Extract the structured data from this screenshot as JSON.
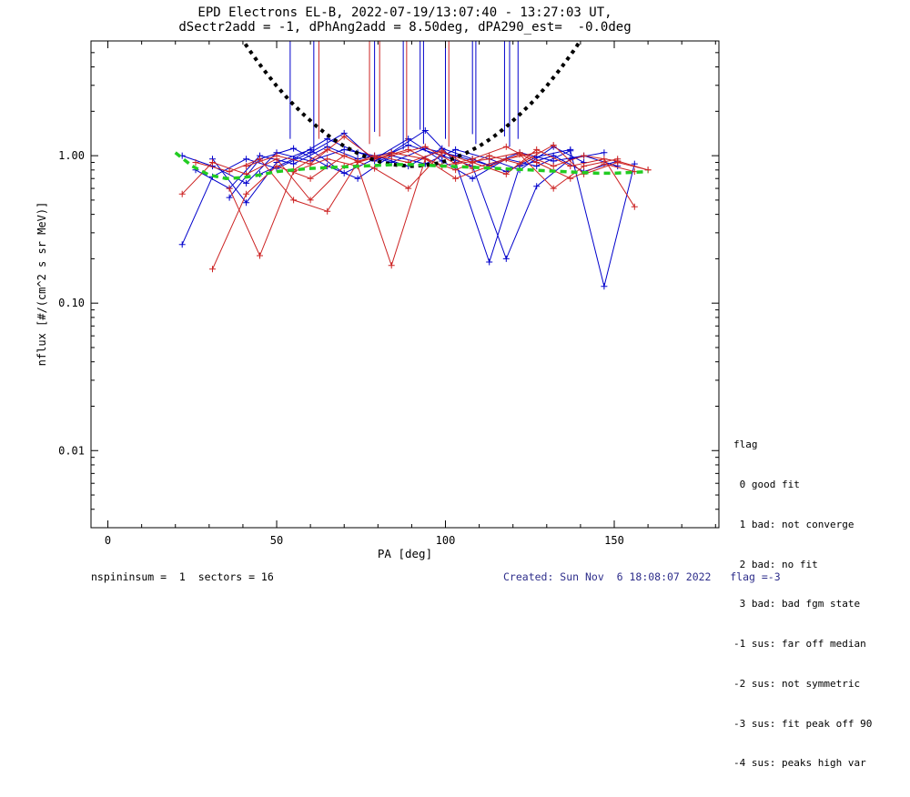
{
  "header": {
    "line1": "EPD Electrons EL-B, 2022-07-19/13:07:40 - 13:27:03 UT,",
    "line2": "dSectr2add = -1, dPhAng2add = 8.50deg, dPA290_est=  -0.0deg"
  },
  "legend": {
    "title": "flag",
    "lines": [
      " 0 good fit",
      " 1 bad: not converge",
      " 2 bad: no fit",
      " 3 bad: bad fgm state",
      "-1 sus: far off median",
      "-2 sus: not symmetric",
      "-3 sus: fit peak off 90",
      "-4 sus: peaks high var"
    ]
  },
  "footer": {
    "left": "nspininsum =  1  sectors = 16",
    "right": "Created: Sun Nov  6 18:08:07 2022   flag =-3"
  },
  "colors": {
    "red": "#cc2222",
    "blue": "#0000cc",
    "green": "#22cc22",
    "black": "#000000",
    "created_text": "#2e2e8b"
  },
  "chart_data": {
    "type": "line",
    "title": "EPD Electrons EL-B, 2022-07-19/13:07:40 - 13:27:03 UT,",
    "subtitle": "dSectr2add = -1, dPhAng2add = 8.50deg, dPA290_est=  -0.0deg",
    "xlabel": "PA [deg]",
    "ylabel": "nflux [#/(cm^2 s sr MeV)]",
    "xlim": [
      -5,
      181
    ],
    "xticks": [
      0,
      50,
      100,
      150
    ],
    "xminor_step": 10,
    "ylog": true,
    "ylim": [
      0.003,
      6.0
    ],
    "yticks": [
      0.01,
      0.1,
      1.0
    ],
    "ytick_labels": [
      "0.01",
      "0.10",
      "1.00"
    ],
    "grid": false,
    "legend_position": "right-bottom-outside",
    "series": [
      {
        "name": "blue-1",
        "color": "#0000cc",
        "x": [
          22,
          31,
          41,
          50,
          60,
          70,
          79,
          89,
          99,
          108,
          118,
          127,
          137,
          147
        ],
        "y": [
          0.25,
          0.72,
          0.95,
          0.82,
          1.05,
          1.42,
          0.92,
          1.18,
          1.0,
          0.85,
          0.2,
          0.62,
          0.95,
          1.05
        ]
      },
      {
        "name": "blue-2",
        "color": "#0000cc",
        "x": [
          31,
          41,
          50,
          60,
          70,
          79,
          89,
          99,
          108,
          118,
          127,
          137,
          147,
          156
        ],
        "y": [
          0.95,
          0.48,
          0.9,
          1.1,
          0.76,
          0.95,
          1.3,
          0.92,
          0.7,
          0.95,
          0.85,
          1.08,
          0.13,
          0.88
        ]
      },
      {
        "name": "blue-3",
        "color": "#0000cc",
        "x": [
          26,
          36,
          45,
          55,
          65,
          74,
          84,
          94,
          103,
          113,
          122,
          132,
          141,
          151
        ],
        "y": [
          0.8,
          0.6,
          1.0,
          0.88,
          1.15,
          0.95,
          1.05,
          1.48,
          0.9,
          0.19,
          0.85,
          1.0,
          0.78,
          0.92
        ]
      },
      {
        "name": "blue-4",
        "color": "#0000cc",
        "x": [
          36,
          45,
          55,
          65,
          74,
          84,
          94,
          103,
          113,
          122,
          132,
          141
        ],
        "y": [
          0.52,
          0.95,
          1.12,
          0.85,
          0.7,
          1.0,
          0.88,
          1.1,
          0.95,
          0.8,
          1.15,
          0.9
        ]
      },
      {
        "name": "blue-5",
        "color": "#0000cc",
        "x": [
          22,
          31,
          41,
          50,
          60,
          70,
          79,
          89,
          99,
          108,
          118,
          127,
          137
        ],
        "y": [
          1.0,
          0.85,
          0.65,
          1.05,
          0.92,
          1.1,
          1.0,
          0.85,
          1.12,
          0.95,
          0.78,
          0.98,
          1.1
        ]
      },
      {
        "name": "blue-6",
        "color": "#0000cc",
        "x": [
          45,
          55,
          65,
          74,
          84,
          94,
          103,
          113,
          122,
          132,
          141,
          151
        ],
        "y": [
          0.75,
          0.95,
          1.3,
          1.05,
          0.9,
          1.12,
          1.0,
          0.86,
          1.05,
          0.92,
          1.0,
          0.85
        ]
      },
      {
        "name": "red-1",
        "color": "#cc2222",
        "x": [
          31,
          41,
          50,
          60,
          70,
          79,
          89,
          99,
          108,
          118,
          127,
          137,
          147,
          156
        ],
        "y": [
          0.17,
          0.55,
          0.85,
          0.7,
          1.0,
          0.82,
          0.6,
          1.05,
          0.9,
          0.75,
          1.1,
          0.85,
          0.95,
          0.45
        ]
      },
      {
        "name": "red-2",
        "color": "#cc2222",
        "x": [
          36,
          45,
          55,
          65,
          74,
          84,
          94,
          103,
          113,
          122,
          132,
          141,
          151,
          160
        ],
        "y": [
          0.6,
          0.21,
          0.78,
          0.95,
          0.85,
          0.18,
          0.95,
          0.8,
          1.0,
          0.88,
          1.18,
          0.75,
          0.9,
          0.8
        ]
      },
      {
        "name": "red-3",
        "color": "#cc2222",
        "x": [
          26,
          36,
          45,
          55,
          65,
          74,
          84,
          94,
          103,
          113,
          122,
          132,
          141,
          151
        ],
        "y": [
          0.9,
          0.78,
          0.95,
          0.5,
          0.42,
          0.9,
          1.05,
          0.95,
          0.7,
          0.85,
          1.02,
          0.6,
          0.85,
          0.95
        ]
      },
      {
        "name": "red-4",
        "color": "#cc2222",
        "x": [
          41,
          50,
          60,
          70,
          79,
          89,
          99,
          108,
          118,
          127,
          137,
          147,
          156
        ],
        "y": [
          0.85,
          1.0,
          0.88,
          1.35,
          0.95,
          1.1,
          0.85,
          0.95,
          1.15,
          0.9,
          0.7,
          0.88,
          0.78
        ]
      },
      {
        "name": "red-5",
        "color": "#cc2222",
        "x": [
          22,
          31,
          41,
          50,
          60,
          70,
          79,
          89,
          99,
          108,
          118,
          127
        ],
        "y": [
          0.55,
          0.9,
          0.75,
          0.95,
          0.5,
          0.85,
          1.0,
          0.9,
          1.08,
          0.82,
          0.95,
          1.05
        ]
      },
      {
        "name": "red-6",
        "color": "#cc2222",
        "x": [
          55,
          65,
          74,
          84,
          94,
          103,
          113,
          122,
          132,
          141,
          151,
          160
        ],
        "y": [
          0.8,
          1.1,
          0.92,
          1.0,
          1.15,
          0.88,
          0.95,
          1.05,
          0.85,
          1.0,
          0.92,
          0.8
        ]
      }
    ],
    "spikes": [
      {
        "x": 54.0,
        "c": "#0000cc",
        "y0": 1.3
      },
      {
        "x": 61.0,
        "c": "#0000cc",
        "y0": 1.05
      },
      {
        "x": 62.5,
        "c": "#cc2222",
        "y0": 1.3
      },
      {
        "x": 77.5,
        "c": "#cc2222",
        "y0": 1.2
      },
      {
        "x": 79.0,
        "c": "#0000cc",
        "y0": 1.45
      },
      {
        "x": 80.5,
        "c": "#cc2222",
        "y0": 1.35
      },
      {
        "x": 87.5,
        "c": "#0000cc",
        "y0": 1.1
      },
      {
        "x": 88.5,
        "c": "#cc2222",
        "y0": 1.25
      },
      {
        "x": 92.5,
        "c": "#0000cc",
        "y0": 1.5
      },
      {
        "x": 93.5,
        "c": "#0000cc",
        "y0": 1.2
      },
      {
        "x": 100.0,
        "c": "#0000cc",
        "y0": 1.3
      },
      {
        "x": 101.0,
        "c": "#cc2222",
        "y0": 1.15
      },
      {
        "x": 108.0,
        "c": "#0000cc",
        "y0": 1.4
      },
      {
        "x": 109.0,
        "c": "#0000cc",
        "y0": 1.2
      },
      {
        "x": 117.5,
        "c": "#0000cc",
        "y0": 1.35
      },
      {
        "x": 119.0,
        "c": "#0000cc",
        "y0": 1.15
      },
      {
        "x": 121.5,
        "c": "#0000cc",
        "y0": 1.3
      }
    ],
    "fit_curve": {
      "name": "pa-fit-dotted",
      "color": "#000000",
      "dash": "4 5",
      "width": 4,
      "x": [
        38,
        42,
        46,
        50,
        54,
        58,
        62,
        66,
        70,
        74,
        78,
        82,
        86,
        90,
        94,
        98,
        102,
        106,
        110,
        114,
        118,
        122,
        126,
        130,
        134,
        138,
        142
      ],
      "y": [
        7.06,
        5.16,
        3.87,
        2.97,
        2.34,
        1.9,
        1.57,
        1.33,
        1.16,
        1.04,
        0.95,
        0.89,
        0.861,
        0.85,
        0.861,
        0.89,
        0.95,
        1.04,
        1.16,
        1.33,
        1.57,
        1.9,
        2.34,
        2.97,
        3.87,
        5.16,
        7.06
      ]
    },
    "median_curve": {
      "name": "median-dashed",
      "color": "#22cc22",
      "dash": "7 5",
      "width": 3.5,
      "x": [
        20,
        25,
        30,
        35,
        40,
        45,
        50,
        55,
        60,
        65,
        70,
        75,
        80,
        85,
        90,
        95,
        100,
        105,
        110,
        115,
        120,
        125,
        130,
        135,
        140,
        145,
        150,
        155,
        160
      ],
      "y": [
        1.05,
        0.85,
        0.74,
        0.7,
        0.71,
        0.74,
        0.78,
        0.8,
        0.82,
        0.83,
        0.84,
        0.85,
        0.86,
        0.87,
        0.87,
        0.86,
        0.85,
        0.84,
        0.83,
        0.82,
        0.81,
        0.8,
        0.79,
        0.78,
        0.77,
        0.76,
        0.76,
        0.77,
        0.78
      ]
    }
  }
}
